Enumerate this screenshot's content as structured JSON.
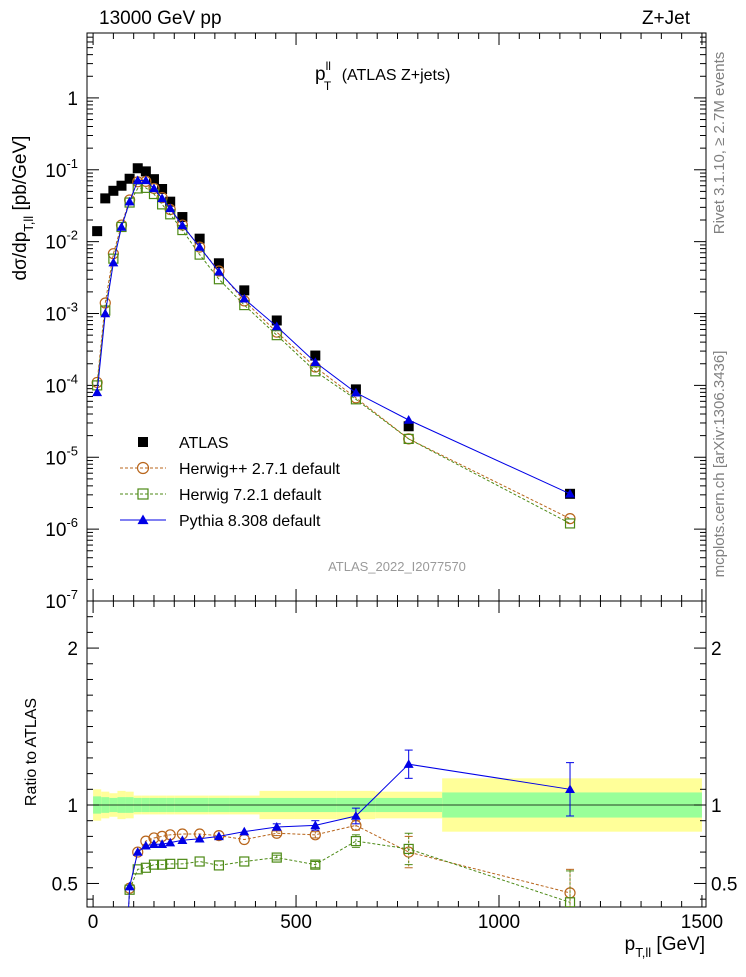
{
  "header": {
    "left": "13000 GeV pp",
    "right": "Z+Jet"
  },
  "side_labels": {
    "rivet": "Rivet 3.1.10, ≥ 2.7M events",
    "mcplots": "mcplots.cern.ch [arXiv:1306.3436]"
  },
  "chart_data": [
    {
      "type": "scatter",
      "title": "p_T^ll (ATLAS Z+jets)",
      "ylabel": "dσ/dp_T,ll [pb/GeV]",
      "xlabel": "p_T,ll [GeV]",
      "xlim": [
        -15,
        1510
      ],
      "ylim": [
        1e-07,
        8
      ],
      "yscale": "log",
      "ytick_labels": [
        "10^-7",
        "10^-6",
        "10^-5",
        "10^-4",
        "10^-3",
        "10^-2",
        "10^-1",
        "1"
      ],
      "xtick_labels": [
        "0",
        "500",
        "1000",
        "1500"
      ],
      "analysis_id": "ATLAS_2022_I2077570",
      "legend_position": "bottom-left",
      "series": [
        {
          "name": "ATLAS",
          "color": "#000000",
          "marker": "filled-square",
          "x": [
            10,
            30,
            50,
            70,
            90,
            110,
            130,
            150,
            170,
            190,
            220,
            262.5,
            310,
            372.5,
            452.5,
            547.5,
            647.5,
            777.5,
            1175
          ],
          "y": [
            0.014,
            0.04,
            0.051,
            0.06,
            0.075,
            0.105,
            0.095,
            0.074,
            0.054,
            0.036,
            0.022,
            0.011,
            0.005,
            0.0021,
            0.0008,
            0.00026,
            8.8e-05,
            2.7e-05,
            3.1e-06
          ]
        },
        {
          "name": "Herwig++ 2.7.1 default",
          "color": "#b8651b",
          "marker": "open-circle",
          "line": "dashed",
          "x": [
            10,
            30,
            50,
            70,
            90,
            110,
            130,
            150,
            170,
            190,
            220,
            262.5,
            310,
            372.5,
            452.5,
            547.5,
            647.5,
            777.5,
            1175
          ],
          "y": [
            0.00011,
            0.0014,
            0.0068,
            0.017,
            0.038,
            0.068,
            0.069,
            0.055,
            0.041,
            0.028,
            0.017,
            0.0084,
            0.0039,
            0.0015,
            0.00055,
            0.00018,
            6.7e-05,
            1.8e-05,
            1.4e-06
          ]
        },
        {
          "name": "Herwig 7.2.1 default",
          "color": "#4d8a16",
          "marker": "open-square",
          "line": "dashed",
          "x": [
            10,
            30,
            50,
            70,
            90,
            110,
            130,
            150,
            170,
            190,
            220,
            262.5,
            310,
            372.5,
            452.5,
            547.5,
            647.5,
            777.5,
            1175
          ],
          "y": [
            0.0001,
            0.0011,
            0.0058,
            0.016,
            0.035,
            0.055,
            0.056,
            0.046,
            0.033,
            0.024,
            0.0145,
            0.0066,
            0.003,
            0.00131,
            0.0005,
            0.000157,
            6.4e-05,
            1.8e-05,
            1.2e-06
          ]
        },
        {
          "name": "Pythia 8.308 default",
          "color": "#0000e6",
          "marker": "filled-triangle",
          "line": "solid",
          "x": [
            10,
            30,
            50,
            70,
            90,
            110,
            130,
            150,
            170,
            190,
            220,
            262.5,
            310,
            372.5,
            452.5,
            547.5,
            647.5,
            777.5,
            1175
          ],
          "y": [
            8e-05,
            0.001,
            0.0051,
            0.016,
            0.036,
            0.071,
            0.071,
            0.055,
            0.04,
            0.029,
            0.0168,
            0.0084,
            0.0038,
            0.0016,
            0.00066,
            0.00021,
            7.9e-05,
            3.3e-05,
            3.1e-06
          ]
        }
      ]
    },
    {
      "type": "line",
      "ylabel": "Ratio to ATLAS",
      "xlabel": "p_T,ll [GeV]",
      "xlim": [
        -15,
        1510
      ],
      "ylim": [
        0.35,
        2.3
      ],
      "ytick_labels": [
        "0.5",
        "1",
        "2"
      ],
      "band_edges": [
        0,
        20,
        40,
        60,
        80,
        100,
        120,
        140,
        160,
        180,
        200,
        240,
        285,
        335,
        410,
        495,
        600,
        695,
        860,
        1500
      ],
      "band_inner": [
        0.055,
        0.05,
        0.045,
        0.05,
        0.05,
        0.045,
        0.045,
        0.045,
        0.045,
        0.045,
        0.045,
        0.045,
        0.045,
        0.045,
        0.045,
        0.045,
        0.045,
        0.045,
        0.08
      ],
      "band_outer": [
        0.1,
        0.085,
        0.075,
        0.09,
        0.085,
        0.06,
        0.06,
        0.06,
        0.06,
        0.06,
        0.06,
        0.06,
        0.06,
        0.06,
        0.09,
        0.09,
        0.09,
        0.085,
        0.17
      ],
      "series": [
        {
          "name": "Herwig++ 2.7.1 default",
          "color": "#b8651b",
          "marker": "open-circle",
          "line": "dashed",
          "x": [
            90,
            110,
            130,
            150,
            170,
            190,
            220,
            262.5,
            310,
            372.5,
            452.5,
            547.5,
            647.5,
            777.5,
            1175
          ],
          "y": [
            0.47,
            0.7,
            0.77,
            0.79,
            0.8,
            0.81,
            0.815,
            0.815,
            0.805,
            0.78,
            0.82,
            0.81,
            0.87,
            0.7,
            0.44
          ],
          "err": [
            0.01,
            0.01,
            0.01,
            0.01,
            0.01,
            0.01,
            0.01,
            0.01,
            0.01,
            0.01,
            0.015,
            0.02,
            0.03,
            0.1,
            0.15
          ]
        },
        {
          "name": "Herwig 7.2.1 default",
          "color": "#4d8a16",
          "marker": "open-square",
          "line": "dashed",
          "x": [
            90,
            110,
            130,
            150,
            170,
            190,
            220,
            262.5,
            310,
            372.5,
            452.5,
            547.5,
            647.5,
            777.5,
            1175
          ],
          "y": [
            0.46,
            0.59,
            0.6,
            0.62,
            0.62,
            0.625,
            0.625,
            0.64,
            0.615,
            0.64,
            0.665,
            0.62,
            0.77,
            0.72,
            0.38
          ],
          "err": [
            0.01,
            0.01,
            0.01,
            0.01,
            0.01,
            0.01,
            0.01,
            0.01,
            0.01,
            0.01,
            0.015,
            0.02,
            0.04,
            0.1,
            0.2
          ]
        },
        {
          "name": "Pythia 8.308 default",
          "color": "#0000e6",
          "marker": "filled-triangle",
          "line": "solid",
          "x": [
            90,
            110,
            130,
            150,
            170,
            190,
            220,
            262.5,
            310,
            372.5,
            452.5,
            547.5,
            647.5,
            777.5,
            1175
          ],
          "y": [
            0.48,
            0.7,
            0.74,
            0.75,
            0.75,
            0.76,
            0.775,
            0.785,
            0.8,
            0.83,
            0.86,
            0.87,
            0.93,
            1.26,
            1.1
          ],
          "err": [
            0.01,
            0.01,
            0.01,
            0.01,
            0.01,
            0.01,
            0.01,
            0.01,
            0.01,
            0.01,
            0.02,
            0.03,
            0.05,
            0.09,
            0.17
          ]
        }
      ]
    }
  ]
}
